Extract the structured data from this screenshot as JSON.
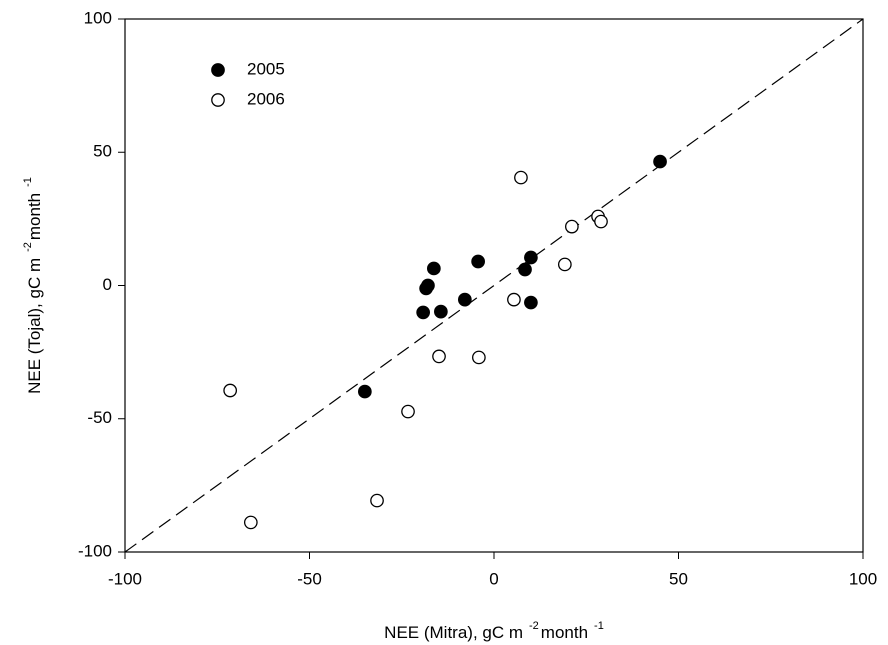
{
  "chart_data": {
    "type": "scatter",
    "xlabel": [
      "NEE (Mitra), gC m",
      "-2",
      "month",
      "-1"
    ],
    "ylabel": [
      "NEE (Tojal), gC m",
      "-2",
      "month",
      "-1"
    ],
    "xlim": [
      -100,
      100
    ],
    "ylim": [
      -100,
      100
    ],
    "xticks": [
      -100,
      -50,
      0,
      50,
      100
    ],
    "yticks": [
      -100,
      -50,
      0,
      50,
      100
    ],
    "grid": false,
    "legend": "upper left",
    "identity_line": true,
    "series": [
      {
        "name": "2005",
        "color": "#000000",
        "marker": "filled",
        "x": [
          45.0,
          10.0,
          8.4,
          10.0,
          -4.3,
          -7.9,
          -16.3,
          -17.9,
          -18.4,
          -19.2,
          -14.4,
          -35.0
        ],
        "values": [
          46.5,
          10.5,
          6.0,
          -6.4,
          9.0,
          -5.3,
          6.4,
          0,
          -1.1,
          -10.1,
          -9.8,
          -39.8
        ]
      },
      {
        "name": "2006",
        "color": "#000000",
        "marker": "open",
        "x": [
          7.3,
          28.2,
          29.0,
          21.1,
          19.2,
          5.4,
          -14.9,
          -4.1,
          -23.3,
          -31.7,
          -71.5,
          -65.9
        ],
        "values": [
          40.5,
          25.9,
          24.0,
          22.1,
          7.9,
          -5.3,
          -26.6,
          -27.0,
          -47.3,
          -80.7,
          -39.4,
          -88.9
        ]
      }
    ]
  }
}
